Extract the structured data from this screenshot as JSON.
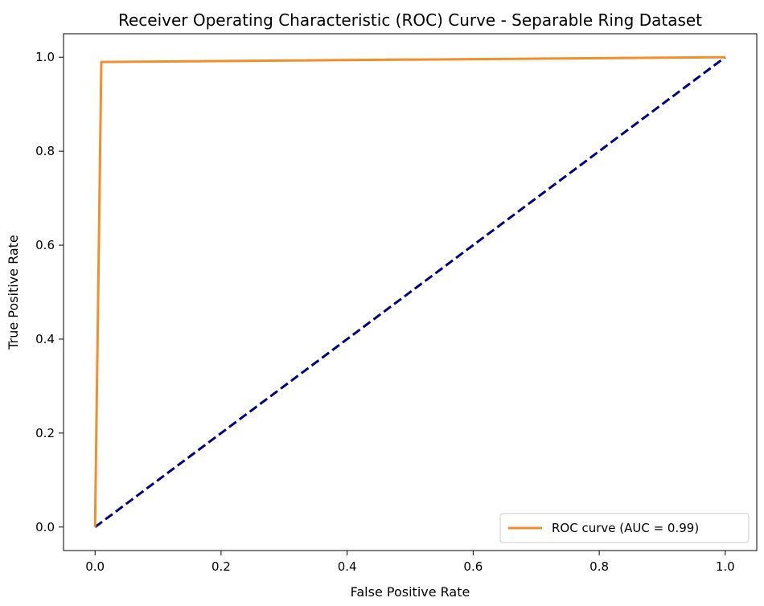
{
  "chart_data": {
    "type": "line",
    "title": "Receiver Operating Characteristic (ROC) Curve - Separable Ring Dataset",
    "xlabel": "False Positive Rate",
    "ylabel": "True Positive Rate",
    "xlim": [
      -0.05,
      1.05
    ],
    "ylim": [
      -0.05,
      1.05
    ],
    "x_ticks": [
      "0.0",
      "0.2",
      "0.4",
      "0.6",
      "0.8",
      "1.0"
    ],
    "y_ticks": [
      "0.0",
      "0.2",
      "0.4",
      "0.6",
      "0.8",
      "1.0"
    ],
    "grid": false,
    "legend_position": "bottom-right",
    "series": [
      {
        "name": "ROC curve (AUC = 0.99)",
        "color": "#f28e2b",
        "style": "solid",
        "x": [
          0.0,
          0.01,
          1.0
        ],
        "y": [
          0.0,
          0.99,
          1.0
        ]
      },
      {
        "color": "#000080",
        "style": "dashed",
        "x": [
          0.0,
          1.0
        ],
        "y": [
          0.0,
          1.0
        ]
      }
    ]
  }
}
